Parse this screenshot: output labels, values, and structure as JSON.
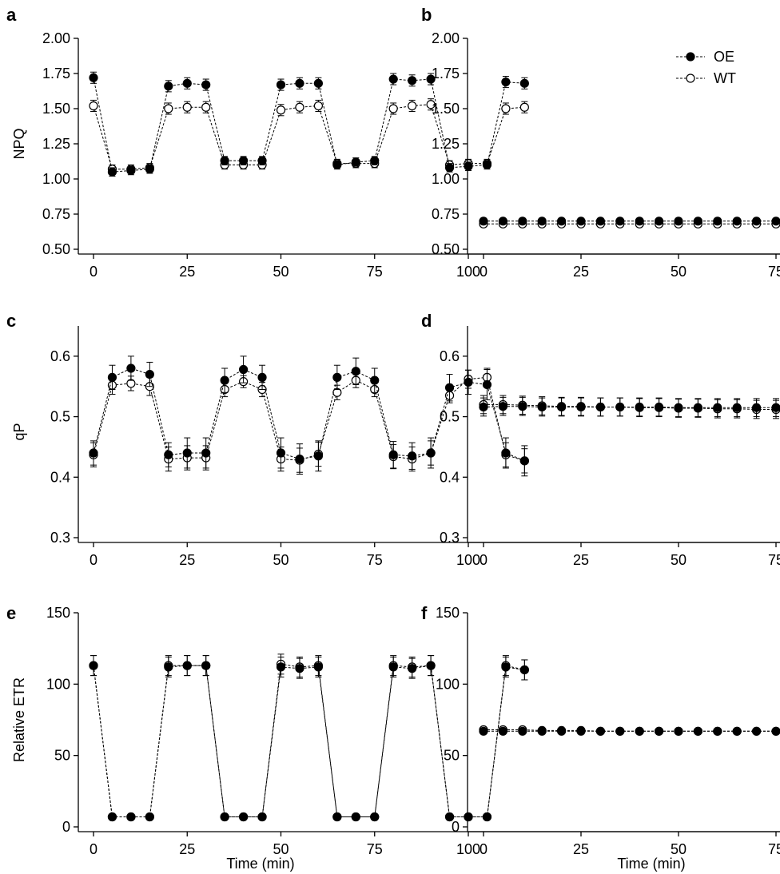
{
  "figure": {
    "legend": [
      {
        "series": "OE",
        "label": "OE",
        "marker": "filled-circle"
      },
      {
        "series": "WT",
        "label": "WT",
        "marker": "open-circle"
      }
    ]
  },
  "chart_data": [
    {
      "panel": "a",
      "type": "line",
      "xlabel": "",
      "ylabel": "NPQ",
      "xlim": [
        0,
        115
      ],
      "ylim": [
        0.5,
        2.0
      ],
      "xticks": [
        0,
        25,
        50,
        75,
        100
      ],
      "yticks": [
        "0.50",
        "0.75",
        "1.00",
        "1.25",
        "1.50",
        "1.75",
        "2.00"
      ],
      "x": [
        0,
        5,
        10,
        15,
        20,
        25,
        30,
        35,
        40,
        45,
        50,
        55,
        60,
        65,
        70,
        75,
        80,
        85,
        90,
        95,
        100,
        105,
        110,
        115
      ],
      "series": [
        {
          "name": "OE",
          "marker": "filled",
          "values": [
            1.72,
            1.05,
            1.06,
            1.07,
            1.66,
            1.68,
            1.67,
            1.13,
            1.13,
            1.13,
            1.67,
            1.68,
            1.68,
            1.1,
            1.12,
            1.13,
            1.71,
            1.7,
            1.71,
            1.08,
            1.09,
            1.1,
            1.69,
            1.68
          ],
          "errors": [
            0.04,
            0.03,
            0.03,
            0.03,
            0.04,
            0.04,
            0.04,
            0.03,
            0.03,
            0.03,
            0.04,
            0.04,
            0.04,
            0.03,
            0.03,
            0.03,
            0.04,
            0.04,
            0.04,
            0.03,
            0.03,
            0.03,
            0.04,
            0.04
          ]
        },
        {
          "name": "WT",
          "marker": "open",
          "values": [
            1.52,
            1.07,
            1.07,
            1.08,
            1.5,
            1.51,
            1.51,
            1.1,
            1.1,
            1.1,
            1.49,
            1.51,
            1.52,
            1.11,
            1.11,
            1.11,
            1.5,
            1.52,
            1.53,
            1.1,
            1.11,
            1.11,
            1.5,
            1.51
          ],
          "errors": [
            0.04,
            0.03,
            0.03,
            0.03,
            0.04,
            0.04,
            0.04,
            0.03,
            0.03,
            0.03,
            0.04,
            0.04,
            0.04,
            0.03,
            0.03,
            0.03,
            0.04,
            0.04,
            0.04,
            0.03,
            0.03,
            0.03,
            0.04,
            0.04
          ]
        }
      ]
    },
    {
      "panel": "b",
      "type": "line",
      "xlabel": "",
      "ylabel": "",
      "xlim": [
        0,
        115
      ],
      "ylim": [
        0.5,
        2.0
      ],
      "xticks": [
        0,
        25,
        50,
        75,
        100
      ],
      "yticks": [
        "0.50",
        "0.75",
        "1.00",
        "1.25",
        "1.50",
        "1.75",
        "2.00"
      ],
      "x": [
        0,
        5,
        10,
        15,
        20,
        25,
        30,
        35,
        40,
        45,
        50,
        55,
        60,
        65,
        70,
        75,
        80,
        85,
        90,
        95,
        100,
        105,
        110,
        115
      ],
      "series": [
        {
          "name": "OE",
          "marker": "filled",
          "values": [
            0.7,
            0.7,
            0.7,
            0.7,
            0.7,
            0.7,
            0.7,
            0.7,
            0.7,
            0.7,
            0.7,
            0.7,
            0.7,
            0.7,
            0.7,
            0.7,
            0.7,
            0.7,
            0.7,
            0.7,
            0.7,
            0.7,
            0.7,
            0.7
          ],
          "errors": [
            0.02,
            0.02,
            0.02,
            0.02,
            0.02,
            0.02,
            0.02,
            0.02,
            0.02,
            0.02,
            0.02,
            0.02,
            0.02,
            0.02,
            0.02,
            0.02,
            0.02,
            0.02,
            0.02,
            0.02,
            0.02,
            0.02,
            0.02,
            0.02
          ]
        },
        {
          "name": "WT",
          "marker": "open",
          "values": [
            0.68,
            0.68,
            0.68,
            0.68,
            0.68,
            0.68,
            0.68,
            0.68,
            0.68,
            0.68,
            0.68,
            0.68,
            0.68,
            0.68,
            0.68,
            0.68,
            0.68,
            0.68,
            0.68,
            0.68,
            0.68,
            0.68,
            0.68,
            0.68
          ],
          "errors": [
            0.02,
            0.02,
            0.02,
            0.02,
            0.02,
            0.02,
            0.02,
            0.02,
            0.02,
            0.02,
            0.02,
            0.02,
            0.02,
            0.02,
            0.02,
            0.02,
            0.02,
            0.02,
            0.02,
            0.02,
            0.02,
            0.02,
            0.02,
            0.02
          ]
        }
      ]
    },
    {
      "panel": "c",
      "type": "line",
      "xlabel": "",
      "ylabel": "qP",
      "xlim": [
        0,
        115
      ],
      "ylim": [
        0.3,
        0.65
      ],
      "xticks": [
        0,
        25,
        50,
        75,
        100
      ],
      "yticks": [
        "0.3",
        "0.4",
        "0.5",
        "0.6"
      ],
      "x": [
        0,
        5,
        10,
        15,
        20,
        25,
        30,
        35,
        40,
        45,
        50,
        55,
        60,
        65,
        70,
        75,
        80,
        85,
        90,
        95,
        100,
        105,
        110,
        115
      ],
      "series": [
        {
          "name": "OE",
          "marker": "filled",
          "values": [
            0.44,
            0.565,
            0.58,
            0.57,
            0.437,
            0.44,
            0.44,
            0.56,
            0.578,
            0.565,
            0.44,
            0.43,
            0.435,
            0.565,
            0.575,
            0.56,
            0.437,
            0.435,
            0.44,
            0.548,
            0.557,
            0.553,
            0.44,
            0.427
          ],
          "errors": [
            0.02,
            0.02,
            0.02,
            0.02,
            0.02,
            0.025,
            0.025,
            0.02,
            0.022,
            0.02,
            0.025,
            0.025,
            0.025,
            0.02,
            0.022,
            0.02,
            0.022,
            0.022,
            0.025,
            0.022,
            0.02,
            0.025,
            0.025,
            0.025
          ]
        },
        {
          "name": "WT",
          "marker": "open",
          "values": [
            0.437,
            0.552,
            0.555,
            0.55,
            0.43,
            0.432,
            0.432,
            0.545,
            0.558,
            0.545,
            0.43,
            0.428,
            0.438,
            0.54,
            0.56,
            0.545,
            0.434,
            0.43,
            0.44,
            0.535,
            0.562,
            0.565,
            0.437,
            0.427
          ],
          "errors": [
            0.02,
            0.015,
            0.012,
            0.015,
            0.02,
            0.02,
            0.02,
            0.012,
            0.01,
            0.012,
            0.02,
            0.02,
            0.02,
            0.012,
            0.012,
            0.012,
            0.02,
            0.02,
            0.02,
            0.012,
            0.015,
            0.015,
            0.02,
            0.02
          ]
        }
      ]
    },
    {
      "panel": "d",
      "type": "line",
      "xlabel": "",
      "ylabel": "",
      "xlim": [
        0,
        115
      ],
      "ylim": [
        0.3,
        0.65
      ],
      "xticks": [
        0,
        25,
        50,
        75,
        100
      ],
      "yticks": [
        "0.3",
        "0.4",
        "0.5",
        "0.6"
      ],
      "x": [
        0,
        5,
        10,
        15,
        20,
        25,
        30,
        35,
        40,
        45,
        50,
        55,
        60,
        65,
        70,
        75,
        80,
        85,
        90,
        95,
        100,
        105,
        110,
        115
      ],
      "series": [
        {
          "name": "OE",
          "marker": "filled",
          "values": [
            0.516,
            0.517,
            0.517,
            0.516,
            0.516,
            0.516,
            0.516,
            0.516,
            0.516,
            0.516,
            0.515,
            0.515,
            0.515,
            0.515,
            0.515,
            0.515,
            0.515,
            0.515,
            0.515,
            0.515,
            0.515,
            0.515,
            0.515,
            0.515
          ],
          "errors": [
            0.015,
            0.015,
            0.015,
            0.015,
            0.015,
            0.015,
            0.015,
            0.015,
            0.015,
            0.015,
            0.015,
            0.015,
            0.015,
            0.015,
            0.015,
            0.015,
            0.015,
            0.015,
            0.015,
            0.015,
            0.015,
            0.015,
            0.015,
            0.015
          ]
        },
        {
          "name": "WT",
          "marker": "open",
          "values": [
            0.52,
            0.52,
            0.519,
            0.518,
            0.517,
            0.517,
            0.516,
            0.516,
            0.515,
            0.515,
            0.514,
            0.514,
            0.513,
            0.513,
            0.512,
            0.512,
            0.511,
            0.511,
            0.51,
            0.51,
            0.509,
            0.509,
            0.508,
            0.508
          ],
          "errors": [
            0.015,
            0.015,
            0.015,
            0.015,
            0.015,
            0.015,
            0.015,
            0.015,
            0.015,
            0.015,
            0.015,
            0.015,
            0.015,
            0.015,
            0.015,
            0.015,
            0.015,
            0.015,
            0.015,
            0.015,
            0.015,
            0.015,
            0.015,
            0.015
          ]
        }
      ]
    },
    {
      "panel": "e",
      "type": "line",
      "xlabel": "Time (min)",
      "ylabel": "Relative ETR",
      "xlim": [
        0,
        115
      ],
      "ylim": [
        0,
        150
      ],
      "xticks": [
        0,
        25,
        50,
        75,
        100
      ],
      "yticks": [
        "0",
        "50",
        "100",
        "150"
      ],
      "x": [
        0,
        5,
        10,
        15,
        20,
        25,
        30,
        35,
        40,
        45,
        50,
        55,
        60,
        65,
        70,
        75,
        80,
        85,
        90,
        95,
        100,
        105,
        110,
        115
      ],
      "series": [
        {
          "name": "OE",
          "marker": "filled",
          "values": [
            113,
            7,
            7,
            7,
            112,
            113,
            113,
            7,
            7,
            7,
            112,
            111,
            112,
            7,
            7,
            7,
            112,
            111,
            113,
            7,
            7,
            7,
            112,
            110
          ],
          "errors": [
            7,
            1,
            1,
            1,
            7,
            7,
            7,
            1,
            1,
            1,
            7,
            7,
            7,
            1,
            1,
            1,
            7,
            7,
            7,
            1,
            1,
            1,
            7,
            7
          ]
        },
        {
          "name": "WT",
          "marker": "open",
          "values": [
            113,
            7,
            7,
            7,
            113,
            113,
            113,
            7,
            7,
            7,
            114,
            112,
            113,
            7,
            7,
            7,
            113,
            112,
            113,
            7,
            7,
            7,
            113,
            110
          ],
          "errors": [
            7,
            1,
            1,
            1,
            7,
            7,
            7,
            1,
            1,
            1,
            7,
            7,
            7,
            1,
            1,
            1,
            7,
            7,
            7,
            1,
            1,
            1,
            7,
            7
          ]
        }
      ]
    },
    {
      "panel": "f",
      "type": "line",
      "xlabel": "Time (min)",
      "ylabel": "",
      "xlim": [
        0,
        115
      ],
      "ylim": [
        0,
        150
      ],
      "xticks": [
        0,
        25,
        50,
        75,
        100
      ],
      "yticks": [
        "0",
        "50",
        "100",
        "150"
      ],
      "x": [
        0,
        5,
        10,
        15,
        20,
        25,
        30,
        35,
        40,
        45,
        50,
        55,
        60,
        65,
        70,
        75,
        80,
        85,
        90,
        95,
        100,
        105,
        110,
        115
      ],
      "series": [
        {
          "name": "OE",
          "marker": "filled",
          "values": [
            67,
            67,
            67,
            67,
            67,
            67,
            67,
            67,
            67,
            67,
            67,
            67,
            67,
            67,
            67,
            67,
            67,
            67,
            67,
            67,
            67,
            67,
            67,
            67
          ],
          "errors": [
            1.5,
            1.5,
            1.5,
            1.5,
            1.5,
            1.5,
            1.5,
            1.5,
            1.5,
            1.5,
            1.5,
            1.5,
            1.5,
            1.5,
            1.5,
            1.5,
            1.5,
            1.5,
            1.5,
            1.5,
            1.5,
            1.5,
            1.5,
            1.5
          ]
        },
        {
          "name": "WT",
          "marker": "open",
          "values": [
            68,
            68,
            68,
            67.5,
            67.5,
            67.5,
            67,
            67,
            67,
            67,
            67,
            67,
            67,
            67,
            67,
            67,
            67,
            67,
            67,
            67,
            67,
            67,
            67,
            67
          ],
          "errors": [
            1.5,
            1.5,
            1.5,
            1.5,
            1.5,
            1.5,
            1.5,
            1.5,
            1.5,
            1.5,
            1.5,
            1.5,
            1.5,
            1.5,
            1.5,
            1.5,
            1.5,
            1.5,
            1.5,
            1.5,
            1.5,
            1.5,
            1.5,
            1.5
          ]
        }
      ]
    }
  ]
}
